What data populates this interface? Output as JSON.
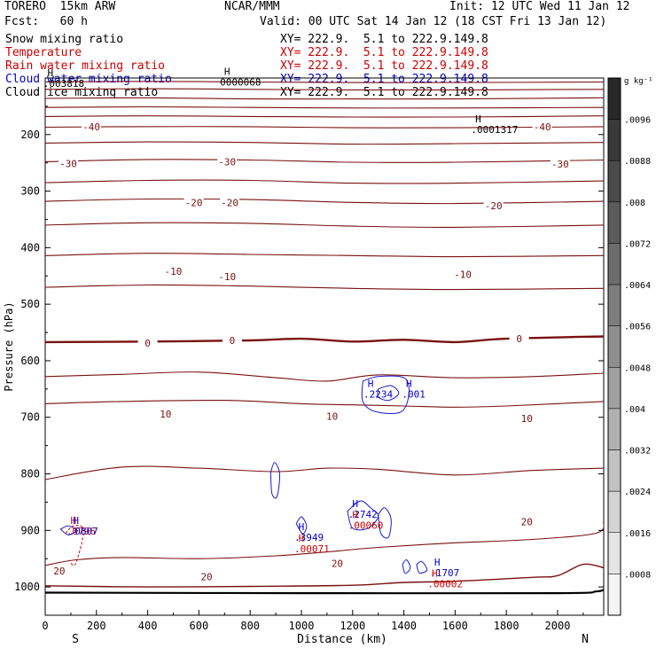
{
  "header": {
    "model": "TORERO  15km ARW",
    "org": "NCAR/MMM",
    "init": "Init: 12 UTC Wed 11 Jan 12",
    "fcst": "Fcst:   60 h",
    "valid": "Valid: 00 UTC Sat 14 Jan 12 (18 CST Fri 13 Jan 12)"
  },
  "fields": [
    {
      "name": "Snow mixing ratio",
      "xy": "XY= 222.9.  5.1 to 222.9.149.8",
      "color": "#000000"
    },
    {
      "name": "Temperature",
      "xy": "XY= 222.9.  5.1 to 222.9.149.8",
      "color": "#cc0000"
    },
    {
      "name": "Rain water mixing ratio",
      "xy": "XY= 222.9.  5.1 to 222.9.149.8",
      "color": "#cc0000"
    },
    {
      "name": "Cloud water mixing ratio",
      "xy": "XY= 222.9.  5.1 to 222.9.149.8",
      "color": "#0000cc"
    },
    {
      "name": "Cloud ice mixing ratio",
      "xy": "XY= 222.9.  5.1 to 222.9.149.8",
      "color": "#000000"
    }
  ],
  "colorbar": {
    "unit": "g kg⁻¹",
    "labels": [
      ".0096",
      ".0088",
      ".008",
      ".0072",
      ".0064",
      ".0056",
      ".0048",
      ".004",
      ".0032",
      ".0024",
      ".0016",
      ".0008"
    ],
    "levels": [
      0.0096,
      0.0088,
      0.008,
      0.0072,
      0.0064,
      0.0056,
      0.0048,
      0.004,
      0.0032,
      0.0024,
      0.0016,
      0.0008
    ]
  },
  "chart_data": {
    "type": "contour",
    "xlabel": "Distance (km)",
    "ylabel": "Pressure (hPa)",
    "xlim": [
      0,
      2180
    ],
    "ylim": [
      1050,
      100
    ],
    "xticks": [
      0,
      200,
      400,
      600,
      800,
      1000,
      1200,
      1400,
      1600,
      1800,
      2000
    ],
    "yticks": [
      200,
      300,
      400,
      500,
      600,
      700,
      800,
      900,
      1000
    ],
    "x_end_labels": {
      "left": "S",
      "right": "N"
    },
    "temperature_isotherms_C": [
      {
        "value": -55,
        "p": [
          [
            0,
            107
          ],
          [
            400,
            106
          ],
          [
            800,
            107
          ],
          [
            1200,
            108
          ],
          [
            1600,
            108
          ],
          [
            2180,
            107
          ]
        ]
      },
      {
        "value": -50,
        "p": [
          [
            0,
            120
          ],
          [
            400,
            119
          ],
          [
            800,
            120
          ],
          [
            1200,
            121
          ],
          [
            1600,
            121
          ],
          [
            2180,
            120
          ]
        ]
      },
      {
        "value": -50,
        "p": [
          [
            0,
            136
          ],
          [
            400,
            135
          ],
          [
            800,
            137
          ],
          [
            1200,
            137
          ],
          [
            1600,
            137
          ],
          [
            2180,
            135
          ]
        ]
      },
      {
        "value": -50,
        "p": [
          [
            0,
            152
          ],
          [
            400,
            151
          ],
          [
            800,
            152
          ],
          [
            1200,
            153
          ],
          [
            1600,
            153
          ],
          [
            2180,
            152
          ]
        ]
      },
      {
        "value": -45,
        "p": [
          [
            0,
            168
          ],
          [
            400,
            167
          ],
          [
            800,
            168
          ],
          [
            1200,
            169
          ],
          [
            1600,
            169
          ],
          [
            2180,
            167
          ]
        ]
      },
      {
        "value": -40,
        "p": [
          [
            0,
            187
          ],
          [
            300,
            186
          ],
          [
            800,
            186
          ],
          [
            1200,
            188
          ],
          [
            1600,
            188
          ],
          [
            2180,
            186
          ]
        ]
      },
      {
        "value": -35,
        "p": [
          [
            0,
            215
          ],
          [
            400,
            213
          ],
          [
            800,
            214
          ],
          [
            1200,
            217
          ],
          [
            1600,
            216
          ],
          [
            2180,
            214
          ]
        ]
      },
      {
        "value": -30,
        "p": [
          [
            0,
            248
          ],
          [
            400,
            244
          ],
          [
            800,
            245
          ],
          [
            1200,
            249
          ],
          [
            1600,
            249
          ],
          [
            2180,
            245
          ]
        ]
      },
      {
        "value": -25,
        "p": [
          [
            0,
            285
          ],
          [
            400,
            281
          ],
          [
            800,
            281
          ],
          [
            1200,
            286
          ],
          [
            1600,
            286
          ],
          [
            2180,
            282
          ]
        ]
      },
      {
        "value": -20,
        "p": [
          [
            0,
            318
          ],
          [
            400,
            314
          ],
          [
            800,
            315
          ],
          [
            1200,
            320
          ],
          [
            1600,
            322
          ],
          [
            2180,
            318
          ]
        ]
      },
      {
        "value": -15,
        "p": [
          [
            0,
            360
          ],
          [
            400,
            356
          ],
          [
            800,
            357
          ],
          [
            1200,
            362
          ],
          [
            1600,
            364
          ],
          [
            2180,
            360
          ]
        ]
      },
      {
        "value": -10,
        "p": [
          [
            0,
            414
          ],
          [
            400,
            410
          ],
          [
            800,
            412
          ],
          [
            1200,
            414
          ],
          [
            1600,
            416
          ],
          [
            2180,
            414
          ]
        ]
      },
      {
        "value": -5,
        "p": [
          [
            0,
            470
          ],
          [
            400,
            466
          ],
          [
            800,
            468
          ],
          [
            1200,
            472
          ],
          [
            1600,
            474
          ],
          [
            2180,
            472
          ]
        ]
      },
      {
        "value": 0,
        "p": [
          [
            0,
            567
          ],
          [
            400,
            566
          ],
          [
            800,
            564
          ],
          [
            1000,
            561
          ],
          [
            1200,
            566
          ],
          [
            1400,
            563
          ],
          [
            1600,
            567
          ],
          [
            1800,
            561
          ],
          [
            2180,
            557
          ]
        ]
      },
      {
        "value": 5,
        "p": [
          [
            0,
            628
          ],
          [
            300,
            624
          ],
          [
            600,
            620
          ],
          [
            900,
            630
          ],
          [
            1100,
            636
          ],
          [
            1300,
            625
          ],
          [
            1600,
            630
          ],
          [
            1900,
            628
          ],
          [
            2180,
            622
          ]
        ]
      },
      {
        "value": 10,
        "p": [
          [
            0,
            676
          ],
          [
            300,
            672
          ],
          [
            700,
            670
          ],
          [
            1000,
            676
          ],
          [
            1200,
            678
          ],
          [
            1400,
            680
          ],
          [
            1600,
            682
          ],
          [
            1800,
            680
          ],
          [
            2180,
            672
          ]
        ]
      },
      {
        "value": 15,
        "p": [
          [
            0,
            810
          ],
          [
            300,
            788
          ],
          [
            600,
            790
          ],
          [
            900,
            796
          ],
          [
            1100,
            790
          ],
          [
            1300,
            792
          ],
          [
            1600,
            802
          ],
          [
            1900,
            794
          ],
          [
            2180,
            790
          ]
        ]
      },
      {
        "value": 20,
        "p": [
          [
            0,
            962
          ],
          [
            120,
            952
          ],
          [
            300,
            948
          ],
          [
            600,
            950
          ],
          [
            900,
            945
          ],
          [
            1100,
            938
          ],
          [
            1300,
            930
          ],
          [
            1600,
            922
          ],
          [
            1900,
            916
          ],
          [
            2150,
            905
          ],
          [
            2180,
            884
          ]
        ]
      },
      {
        "value": 25,
        "p": [
          [
            0,
            998
          ],
          [
            400,
            1000
          ],
          [
            800,
            999
          ],
          [
            1200,
            997
          ],
          [
            1400,
            992
          ],
          [
            1600,
            990
          ],
          [
            1900,
            983
          ],
          [
            2000,
            980
          ],
          [
            2100,
            960
          ],
          [
            2180,
            966
          ]
        ]
      }
    ],
    "temperature_labels": [
      {
        "x": 180,
        "p": 186,
        "t": "-40"
      },
      {
        "x": 1940,
        "p": 186,
        "t": "-40"
      },
      {
        "x": 90,
        "p": 251,
        "t": "-30"
      },
      {
        "x": 710,
        "p": 248,
        "t": "-30"
      },
      {
        "x": 2010,
        "p": 252,
        "t": "-30"
      },
      {
        "x": 580,
        "p": 320,
        "t": "-20"
      },
      {
        "x": 720,
        "p": 320,
        "t": "-20"
      },
      {
        "x": 1750,
        "p": 326,
        "t": "-20"
      },
      {
        "x": 500,
        "p": 442,
        "t": "-10"
      },
      {
        "x": 710,
        "p": 451,
        "t": "-10"
      },
      {
        "x": 1630,
        "p": 447,
        "t": "-10"
      },
      {
        "x": 400,
        "p": 569,
        "t": "0"
      },
      {
        "x": 730,
        "p": 564,
        "t": "0"
      },
      {
        "x": 1850,
        "p": 561,
        "t": "0"
      },
      {
        "x": 470,
        "p": 694,
        "t": "10"
      },
      {
        "x": 1120,
        "p": 698,
        "t": "10"
      },
      {
        "x": 1880,
        "p": 702,
        "t": "10"
      },
      {
        "x": 55,
        "p": 972,
        "t": "20"
      },
      {
        "x": 630,
        "p": 982,
        "t": "20"
      },
      {
        "x": 1140,
        "p": 958,
        "t": "20"
      },
      {
        "x": 1880,
        "p": 885,
        "t": "20"
      }
    ],
    "maxima": [
      {
        "x": 710,
        "p": 104,
        "label": "0000068",
        "color": "#000000"
      },
      {
        "x": 1690,
        "p": 188,
        "label": ".0001317",
        "color": "#000000"
      },
      {
        "x": 1270,
        "p": 656,
        "label": ".2234",
        "color": "#0000cc"
      },
      {
        "x": 1420,
        "p": 656,
        "label": ".001",
        "color": "#0000cc"
      },
      {
        "x": 1210,
        "p": 868,
        "label": ".2742",
        "color": "#0000cc"
      },
      {
        "x": 1210,
        "p": 888,
        "label": ".00060",
        "color": "#cc0000"
      },
      {
        "x": 1000,
        "p": 909,
        "label": ".3949",
        "color": "#0000cc"
      },
      {
        "x": 1000,
        "p": 929,
        "label": ".00071",
        "color": "#cc0000"
      },
      {
        "x": 110,
        "p": 898,
        "label": ".0796",
        "color": "#cc0000"
      },
      {
        "x": 120,
        "p": 898,
        "label": ".0807",
        "color": "#0000cc"
      },
      {
        "x": 1530,
        "p": 972,
        "label": ".1707",
        "color": "#0000cc"
      },
      {
        "x": 1520,
        "p": 991,
        "label": ".00002",
        "color": "#cc0000"
      },
      {
        "x": 20,
        "p": 106,
        "label": ".003818",
        "color": "#000000"
      }
    ],
    "surface_p": [
      [
        0,
        1010
      ],
      [
        1000,
        1011
      ],
      [
        2000,
        1011
      ],
      [
        2150,
        1008
      ],
      [
        2180,
        1005
      ]
    ]
  }
}
